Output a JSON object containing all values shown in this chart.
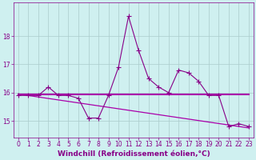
{
  "x": [
    0,
    1,
    2,
    3,
    4,
    5,
    6,
    7,
    8,
    9,
    10,
    11,
    12,
    13,
    14,
    15,
    16,
    17,
    18,
    19,
    20,
    21,
    22,
    23
  ],
  "line1": [
    15.9,
    15.9,
    15.9,
    16.2,
    15.9,
    15.9,
    15.8,
    15.1,
    15.1,
    15.9,
    16.9,
    18.7,
    17.5,
    16.5,
    16.2,
    16.0,
    16.8,
    16.7,
    16.4,
    15.9,
    15.9,
    14.8,
    14.9,
    14.8
  ],
  "line2_x": [
    0,
    23
  ],
  "line2_y": [
    15.95,
    15.95
  ],
  "line3_x": [
    0,
    23
  ],
  "line3_y": [
    15.95,
    14.75
  ],
  "bg_color": "#cff0f0",
  "grid_color": "#aacccc",
  "line_color": "#880088",
  "hline_color": "#aa00aa",
  "diag_color": "#aa00aa",
  "ylim": [
    14.4,
    19.2
  ],
  "xlim": [
    -0.5,
    23.5
  ],
  "yticks": [
    15,
    16,
    17,
    18
  ],
  "xticks": [
    0,
    1,
    2,
    3,
    4,
    5,
    6,
    7,
    8,
    9,
    10,
    11,
    12,
    13,
    14,
    15,
    16,
    17,
    18,
    19,
    20,
    21,
    22,
    23
  ],
  "xlabel": "Windchill (Refroidissement éolien,°C)",
  "xlabel_fontsize": 6.5,
  "tick_fontsize": 5.5,
  "marker": "+",
  "markersize": 4,
  "linewidth": 0.8,
  "hline_lw": 1.5,
  "diag_lw": 0.9
}
